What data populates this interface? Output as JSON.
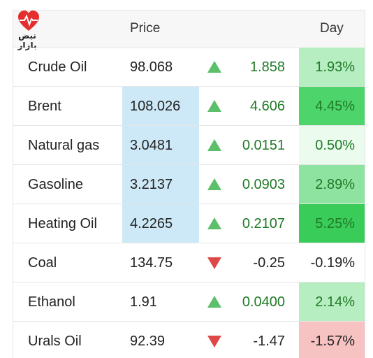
{
  "header": {
    "logo_text": "نبض بازار",
    "price": "Price",
    "day": "Day"
  },
  "table": {
    "rows": [
      {
        "name": "Crude Oil",
        "price": "98.068",
        "direction": "up",
        "change": "1.858",
        "day": "1.93%",
        "price_highlight": false,
        "day_color": "#b6edc1"
      },
      {
        "name": "Brent",
        "price": "108.026",
        "direction": "up",
        "change": "4.606",
        "day": "4.45%",
        "price_highlight": true,
        "day_color": "#4dd46b"
      },
      {
        "name": "Natural gas",
        "price": "3.0481",
        "direction": "up",
        "change": "0.0151",
        "day": "0.50%",
        "price_highlight": true,
        "day_color": "#ebfbee"
      },
      {
        "name": "Gasoline",
        "price": "3.2137",
        "direction": "up",
        "change": "0.0903",
        "day": "2.89%",
        "price_highlight": true,
        "day_color": "#8fe3a1"
      },
      {
        "name": "Heating Oil",
        "price": "4.2265",
        "direction": "up",
        "change": "0.2107",
        "day": "5.25%",
        "price_highlight": true,
        "day_color": "#39cc59"
      },
      {
        "name": "Coal",
        "price": "134.75",
        "direction": "down",
        "change": "-0.25",
        "day": "-0.19%",
        "price_highlight": false,
        "day_color": "#ffffff"
      },
      {
        "name": "Ethanol",
        "price": "1.91",
        "direction": "up",
        "change": "0.0400",
        "day": "2.14%",
        "price_highlight": false,
        "day_color": "#b6edc1"
      },
      {
        "name": "Urals Oil",
        "price": "92.39",
        "direction": "down",
        "change": "-1.47",
        "day": "-1.57%",
        "price_highlight": false,
        "day_color": "#f7c2c2"
      }
    ]
  }
}
